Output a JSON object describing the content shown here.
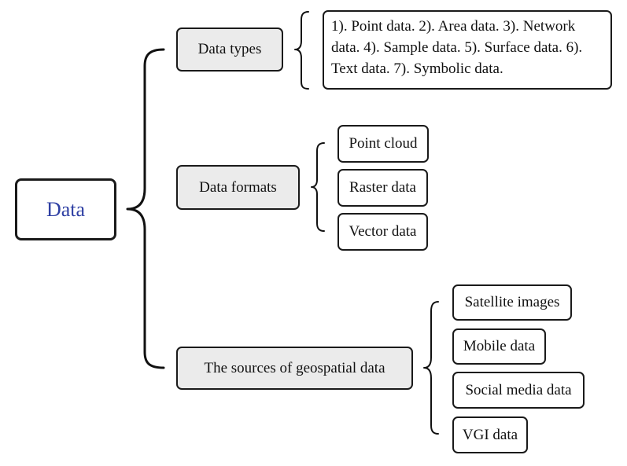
{
  "root": {
    "label": "Data",
    "color": "#2e3fa3"
  },
  "categories": [
    {
      "label": "Data types",
      "items": [
        "1). Point data. 2). Area data. 3). Network data. 4). Sample data. 5). Surface data. 6). Text data. 7). Symbolic data."
      ]
    },
    {
      "label": "Data formats",
      "items": [
        "Point cloud",
        "Raster data",
        "Vector data"
      ]
    },
    {
      "label": "The sources of geospatial data",
      "items": [
        "Satellite images",
        "Mobile data",
        "Social media data",
        "VGI data"
      ]
    }
  ]
}
